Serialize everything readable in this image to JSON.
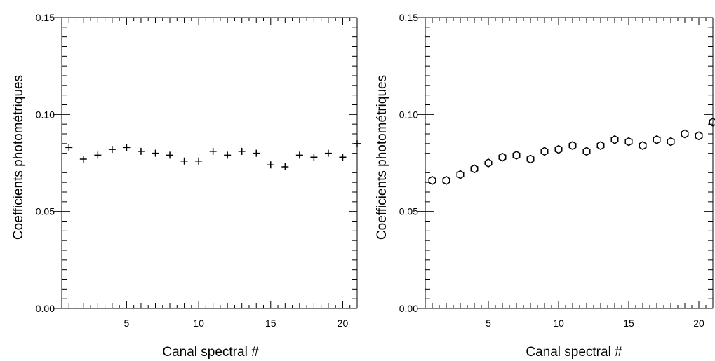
{
  "chart_data": [
    {
      "type": "scatter",
      "marker": "plus",
      "xlabel": "Canal spectral #",
      "ylabel": "Coefficients photométriques",
      "xlim": [
        0.5,
        21
      ],
      "ylim": [
        0.0,
        0.15
      ],
      "x_ticks": [
        5,
        10,
        15,
        20
      ],
      "y_ticks": [
        "0.00",
        "0.05",
        "0.10",
        "0.15"
      ],
      "series": [
        {
          "x": [
            1,
            2,
            3,
            4,
            5,
            6,
            7,
            8,
            9,
            10,
            11,
            12,
            13,
            14,
            15,
            16,
            17,
            18,
            19,
            20,
            21
          ],
          "values": [
            0.083,
            0.077,
            0.079,
            0.082,
            0.083,
            0.081,
            0.08,
            0.079,
            0.076,
            0.076,
            0.081,
            0.079,
            0.081,
            0.08,
            0.074,
            0.073,
            0.079,
            0.078,
            0.08,
            0.078,
            0.085
          ]
        }
      ]
    },
    {
      "type": "scatter",
      "marker": "open-hexagon",
      "xlabel": "Canal spectral #",
      "ylabel": "Coefficients photométriques",
      "xlim": [
        0.5,
        21
      ],
      "ylim": [
        0.0,
        0.15
      ],
      "x_ticks": [
        5,
        10,
        15,
        20
      ],
      "y_ticks": [
        "0.00",
        "0.05",
        "0.10",
        "0.15"
      ],
      "series": [
        {
          "x": [
            1,
            2,
            3,
            4,
            5,
            6,
            7,
            8,
            9,
            10,
            11,
            12,
            13,
            14,
            15,
            16,
            17,
            18,
            19,
            20,
            21
          ],
          "values": [
            0.066,
            0.066,
            0.069,
            0.072,
            0.075,
            0.078,
            0.079,
            0.077,
            0.081,
            0.082,
            0.084,
            0.081,
            0.084,
            0.087,
            0.086,
            0.084,
            0.087,
            0.086,
            0.09,
            0.089,
            0.096
          ]
        }
      ]
    }
  ]
}
